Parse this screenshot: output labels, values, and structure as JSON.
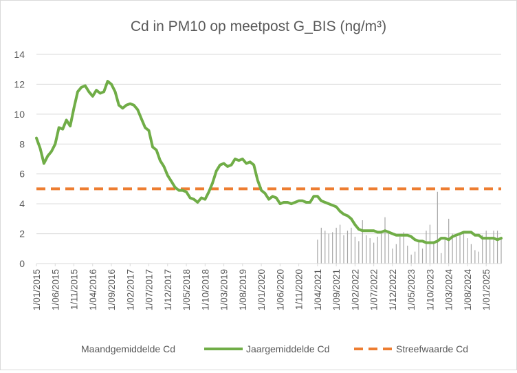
{
  "chart_data": {
    "type": "line",
    "title": "Cd in PM10 op meetpost G_BIS (ng/m³)",
    "xlabel": "",
    "ylabel": "",
    "ylim": [
      0,
      14
    ],
    "y_ticks": [
      "0",
      "2",
      "4",
      "6",
      "8",
      "10",
      "12",
      "14"
    ],
    "x_start": "2015-01",
    "x_end": "2025-05",
    "x_tick_labels": [
      "1/01/2015",
      "1/06/2015",
      "1/11/2015",
      "1/04/2016",
      "1/09/2016",
      "1/02/2017",
      "1/07/2017",
      "1/12/2017",
      "1/05/2018",
      "1/10/2018",
      "1/03/2019",
      "1/08/2019",
      "1/01/2020",
      "1/06/2020",
      "1/11/2020",
      "1/04/2021",
      "1/09/2021",
      "1/02/2022",
      "1/07/2022",
      "1/12/2022",
      "1/05/2023",
      "1/10/2023",
      "1/03/2024",
      "1/08/2024",
      "1/01/2025"
    ],
    "grid": "horizontal",
    "legend_position": "bottom",
    "series": [
      {
        "name": "Maandgemiddelde Cd",
        "kind": "bar",
        "color": "#a6a6a6",
        "points": [
          [
            "2021-04",
            1.6
          ],
          [
            "2021-05",
            2.4
          ],
          [
            "2021-06",
            2.2
          ],
          [
            "2021-07",
            2.0
          ],
          [
            "2021-08",
            2.1
          ],
          [
            "2021-09",
            2.4
          ],
          [
            "2021-10",
            2.6
          ],
          [
            "2021-11",
            1.9
          ],
          [
            "2021-12",
            2.2
          ],
          [
            "2022-01",
            2.4
          ],
          [
            "2022-02",
            1.8
          ],
          [
            "2022-03",
            1.5
          ],
          [
            "2022-04",
            2.9
          ],
          [
            "2022-05",
            1.9
          ],
          [
            "2022-06",
            1.7
          ],
          [
            "2022-07",
            1.4
          ],
          [
            "2022-08",
            1.8
          ],
          [
            "2022-09",
            2.0
          ],
          [
            "2022-10",
            3.1
          ],
          [
            "2022-11",
            2.2
          ],
          [
            "2022-12",
            1.0
          ],
          [
            "2023-01",
            1.3
          ],
          [
            "2023-02",
            1.8
          ],
          [
            "2023-03",
            2.1
          ],
          [
            "2023-04",
            1.2
          ],
          [
            "2023-05",
            0.6
          ],
          [
            "2023-06",
            0.8
          ],
          [
            "2023-07",
            1.4
          ],
          [
            "2023-08",
            1.0
          ],
          [
            "2023-09",
            2.2
          ],
          [
            "2023-10",
            2.6
          ],
          [
            "2023-11",
            1.5
          ],
          [
            "2023-12",
            4.8
          ],
          [
            "2024-01",
            0.7
          ],
          [
            "2024-02",
            1.6
          ],
          [
            "2024-03",
            3.0
          ],
          [
            "2024-04",
            2.0
          ],
          [
            "2024-05",
            1.8
          ],
          [
            "2024-06",
            1.9
          ],
          [
            "2024-07",
            2.1
          ],
          [
            "2024-08",
            1.7
          ],
          [
            "2024-09",
            1.3
          ],
          [
            "2024-10",
            0.9
          ],
          [
            "2024-11",
            0.8
          ],
          [
            "2024-12",
            1.9
          ],
          [
            "2025-01",
            2.2
          ],
          [
            "2025-02",
            1.7
          ],
          [
            "2025-03",
            2.2
          ],
          [
            "2025-04",
            2.2
          ],
          [
            "2025-05",
            1.7
          ]
        ]
      },
      {
        "name": "Jaargemiddelde Cd",
        "kind": "line",
        "color": "#70ad47",
        "points": [
          [
            "2015-01",
            8.4
          ],
          [
            "2015-02",
            7.7
          ],
          [
            "2015-03",
            6.7
          ],
          [
            "2015-04",
            7.2
          ],
          [
            "2015-05",
            7.5
          ],
          [
            "2015-06",
            8.0
          ],
          [
            "2015-07",
            9.1
          ],
          [
            "2015-08",
            9.0
          ],
          [
            "2015-09",
            9.6
          ],
          [
            "2015-10",
            9.2
          ],
          [
            "2015-11",
            10.4
          ],
          [
            "2015-12",
            11.5
          ],
          [
            "2016-01",
            11.8
          ],
          [
            "2016-02",
            11.9
          ],
          [
            "2016-03",
            11.5
          ],
          [
            "2016-04",
            11.2
          ],
          [
            "2016-05",
            11.6
          ],
          [
            "2016-06",
            11.4
          ],
          [
            "2016-07",
            11.5
          ],
          [
            "2016-08",
            12.2
          ],
          [
            "2016-09",
            12.0
          ],
          [
            "2016-10",
            11.5
          ],
          [
            "2016-11",
            10.6
          ],
          [
            "2016-12",
            10.4
          ],
          [
            "2017-01",
            10.6
          ],
          [
            "2017-02",
            10.7
          ],
          [
            "2017-03",
            10.6
          ],
          [
            "2017-04",
            10.3
          ],
          [
            "2017-05",
            9.7
          ],
          [
            "2017-06",
            9.1
          ],
          [
            "2017-07",
            8.9
          ],
          [
            "2017-08",
            7.8
          ],
          [
            "2017-09",
            7.6
          ],
          [
            "2017-10",
            6.9
          ],
          [
            "2017-11",
            6.5
          ],
          [
            "2017-12",
            5.9
          ],
          [
            "2018-01",
            5.5
          ],
          [
            "2018-02",
            5.1
          ],
          [
            "2018-03",
            4.9
          ],
          [
            "2018-04",
            4.9
          ],
          [
            "2018-05",
            4.8
          ],
          [
            "2018-06",
            4.4
          ],
          [
            "2018-07",
            4.3
          ],
          [
            "2018-08",
            4.1
          ],
          [
            "2018-09",
            4.4
          ],
          [
            "2018-10",
            4.3
          ],
          [
            "2018-11",
            4.8
          ],
          [
            "2018-12",
            5.4
          ],
          [
            "2019-01",
            6.2
          ],
          [
            "2019-02",
            6.6
          ],
          [
            "2019-03",
            6.7
          ],
          [
            "2019-04",
            6.5
          ],
          [
            "2019-05",
            6.6
          ],
          [
            "2019-06",
            7.0
          ],
          [
            "2019-07",
            6.9
          ],
          [
            "2019-08",
            7.0
          ],
          [
            "2019-09",
            6.7
          ],
          [
            "2019-10",
            6.8
          ],
          [
            "2019-11",
            6.6
          ],
          [
            "2019-12",
            5.6
          ],
          [
            "2020-01",
            4.9
          ],
          [
            "2020-02",
            4.7
          ],
          [
            "2020-03",
            4.3
          ],
          [
            "2020-04",
            4.5
          ],
          [
            "2020-05",
            4.4
          ],
          [
            "2020-06",
            4.0
          ],
          [
            "2020-07",
            4.1
          ],
          [
            "2020-08",
            4.1
          ],
          [
            "2020-09",
            4.0
          ],
          [
            "2020-10",
            4.1
          ],
          [
            "2020-11",
            4.2
          ],
          [
            "2020-12",
            4.2
          ],
          [
            "2021-01",
            4.1
          ],
          [
            "2021-02",
            4.1
          ],
          [
            "2021-03",
            4.5
          ],
          [
            "2021-04",
            4.5
          ],
          [
            "2021-05",
            4.2
          ],
          [
            "2021-06",
            4.1
          ],
          [
            "2021-07",
            4.0
          ],
          [
            "2021-08",
            3.9
          ],
          [
            "2021-09",
            3.8
          ],
          [
            "2021-10",
            3.5
          ],
          [
            "2021-11",
            3.3
          ],
          [
            "2021-12",
            3.2
          ],
          [
            "2022-01",
            3.0
          ],
          [
            "2022-02",
            2.6
          ],
          [
            "2022-03",
            2.3
          ],
          [
            "2022-04",
            2.2
          ],
          [
            "2022-05",
            2.2
          ],
          [
            "2022-06",
            2.2
          ],
          [
            "2022-07",
            2.2
          ],
          [
            "2022-08",
            2.1
          ],
          [
            "2022-09",
            2.1
          ],
          [
            "2022-10",
            2.2
          ],
          [
            "2022-11",
            2.1
          ],
          [
            "2022-12",
            2.0
          ],
          [
            "2023-01",
            1.9
          ],
          [
            "2023-02",
            1.9
          ],
          [
            "2023-03",
            1.9
          ],
          [
            "2023-04",
            1.9
          ],
          [
            "2023-05",
            1.8
          ],
          [
            "2023-06",
            1.6
          ],
          [
            "2023-07",
            1.5
          ],
          [
            "2023-08",
            1.5
          ],
          [
            "2023-09",
            1.4
          ],
          [
            "2023-10",
            1.4
          ],
          [
            "2023-11",
            1.4
          ],
          [
            "2023-12",
            1.5
          ],
          [
            "2024-01",
            1.7
          ],
          [
            "2024-02",
            1.7
          ],
          [
            "2024-03",
            1.6
          ],
          [
            "2024-04",
            1.8
          ],
          [
            "2024-05",
            1.9
          ],
          [
            "2024-06",
            2.0
          ],
          [
            "2024-07",
            2.1
          ],
          [
            "2024-08",
            2.1
          ],
          [
            "2024-09",
            2.1
          ],
          [
            "2024-10",
            1.9
          ],
          [
            "2024-11",
            1.9
          ],
          [
            "2024-12",
            1.7
          ],
          [
            "2025-01",
            1.7
          ],
          [
            "2025-02",
            1.7
          ],
          [
            "2025-03",
            1.7
          ],
          [
            "2025-04",
            1.6
          ],
          [
            "2025-05",
            1.7
          ]
        ]
      },
      {
        "name": "Streefwaarde Cd",
        "kind": "dashed-line",
        "color": "#ed7d31",
        "value": 5
      }
    ]
  }
}
